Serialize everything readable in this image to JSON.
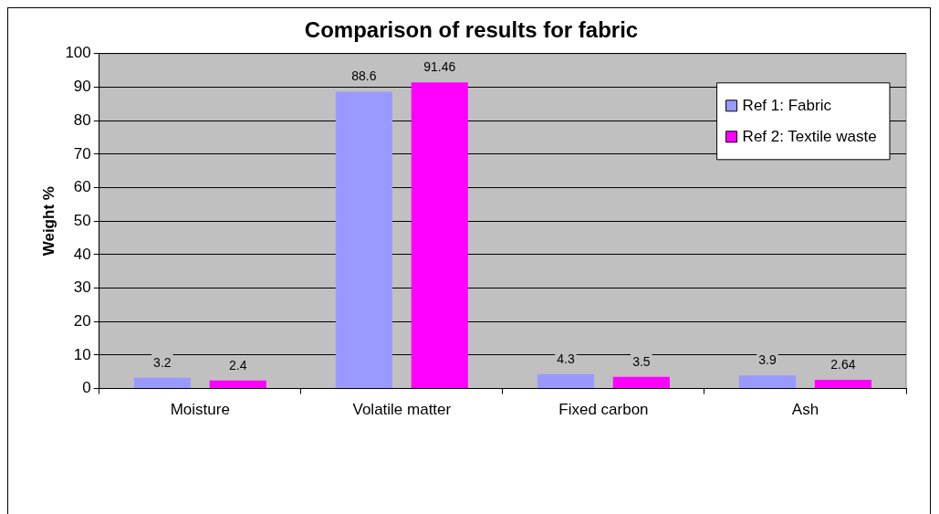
{
  "chart_data": {
    "type": "bar",
    "title": "Comparison of results for fabric",
    "ylabel": "Weight %",
    "categories": [
      "Moisture",
      "Volatile matter",
      "Fixed carbon",
      "Ash"
    ],
    "series": [
      {
        "name": "Ref 1: Fabric",
        "color": "#9999ff",
        "values": [
          3.2,
          88.6,
          4.3,
          3.9
        ]
      },
      {
        "name": "Ref 2: Textile waste",
        "color": "#ff00ff",
        "values": [
          2.4,
          91.46,
          3.5,
          2.64
        ]
      }
    ],
    "ylim": [
      0,
      100
    ],
    "yticks": [
      0,
      10,
      20,
      30,
      40,
      50,
      60,
      70,
      80,
      90,
      100
    ],
    "grid": "y",
    "legend": "top right",
    "data_labels": true
  }
}
